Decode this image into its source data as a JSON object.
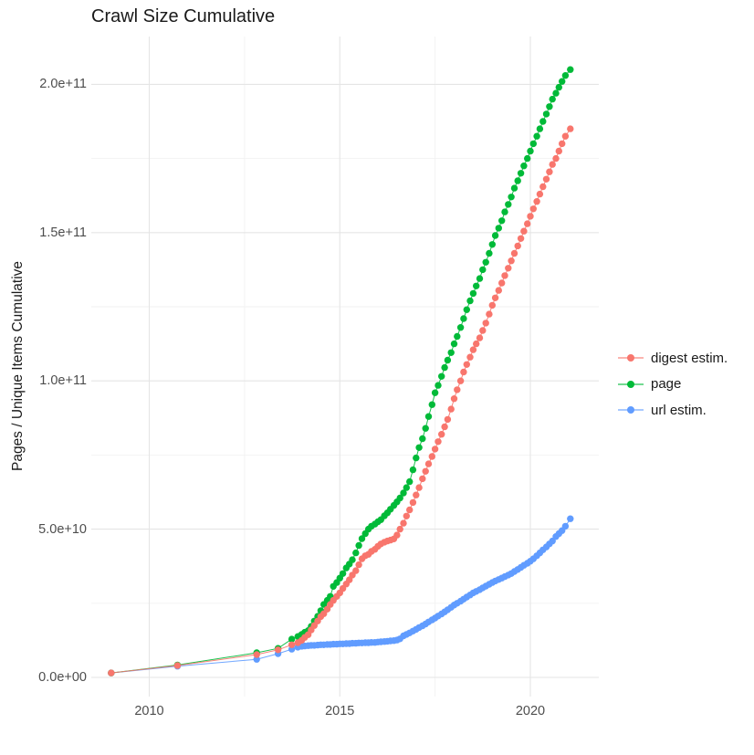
{
  "chart_data": {
    "type": "scatter",
    "title": "Crawl Size Cumulative",
    "xlabel": "",
    "ylabel": "Pages / Unique Items Cumulative",
    "legend_position": "right-center",
    "background_color": "#FFFFFF",
    "grid": {
      "major_color": "#E5E5E5",
      "minor_color": "#F2F2F2",
      "show_minor": true
    },
    "value_unit": "1e10 (values below are in units of 10 billion)",
    "x_axis": {
      "range": [
        2008.5,
        2021.8
      ],
      "ticks": [
        {
          "label": "2010",
          "value": 2010
        },
        {
          "label": "2015",
          "value": 2015
        },
        {
          "label": "2020",
          "value": 2020
        }
      ],
      "minor_ticks": [
        2012.5,
        2017.5
      ]
    },
    "y_axis": {
      "range_units_1e10": [
        -0.65,
        21.6
      ],
      "ticks": [
        {
          "label": "0.0e+00",
          "value": 0
        },
        {
          "label": "5.0e+10",
          "value": 5
        },
        {
          "label": "1.0e+11",
          "value": 10
        },
        {
          "label": "1.5e+11",
          "value": 15
        },
        {
          "label": "2.0e+11",
          "value": 20
        }
      ],
      "minor_ticks": [
        2.5,
        7.5,
        12.5,
        17.5
      ]
    },
    "series": [
      {
        "name": "digest estim.",
        "color": "#F8766D",
        "points": [
          [
            2009.0,
            0.15
          ],
          [
            2010.74,
            0.4
          ],
          [
            2012.82,
            0.77
          ],
          [
            2013.38,
            0.93
          ],
          [
            2013.74,
            1.1
          ],
          [
            2013.9,
            1.17
          ],
          [
            2014.0,
            1.25
          ],
          [
            2014.08,
            1.35
          ],
          [
            2014.17,
            1.44
          ],
          [
            2014.25,
            1.6
          ],
          [
            2014.33,
            1.75
          ],
          [
            2014.42,
            1.9
          ],
          [
            2014.5,
            2.05
          ],
          [
            2014.58,
            2.15
          ],
          [
            2014.67,
            2.3
          ],
          [
            2014.75,
            2.46
          ],
          [
            2014.83,
            2.6
          ],
          [
            2014.92,
            2.73
          ],
          [
            2015.0,
            2.85
          ],
          [
            2015.08,
            3.0
          ],
          [
            2015.17,
            3.15
          ],
          [
            2015.25,
            3.29
          ],
          [
            2015.33,
            3.45
          ],
          [
            2015.42,
            3.6
          ],
          [
            2015.5,
            3.8
          ],
          [
            2015.58,
            4.0
          ],
          [
            2015.67,
            4.1
          ],
          [
            2015.75,
            4.15
          ],
          [
            2015.83,
            4.25
          ],
          [
            2015.92,
            4.32
          ],
          [
            2016.0,
            4.42
          ],
          [
            2016.08,
            4.5
          ],
          [
            2016.17,
            4.56
          ],
          [
            2016.25,
            4.6
          ],
          [
            2016.33,
            4.63
          ],
          [
            2016.42,
            4.67
          ],
          [
            2016.5,
            4.8
          ],
          [
            2016.58,
            5.0
          ],
          [
            2016.67,
            5.2
          ],
          [
            2016.75,
            5.44
          ],
          [
            2016.83,
            5.65
          ],
          [
            2016.92,
            5.9
          ],
          [
            2017.0,
            6.15
          ],
          [
            2017.08,
            6.4
          ],
          [
            2017.17,
            6.7
          ],
          [
            2017.25,
            6.95
          ],
          [
            2017.33,
            7.2
          ],
          [
            2017.42,
            7.45
          ],
          [
            2017.5,
            7.7
          ],
          [
            2017.58,
            7.95
          ],
          [
            2017.67,
            8.2
          ],
          [
            2017.75,
            8.45
          ],
          [
            2017.83,
            8.7
          ],
          [
            2017.92,
            9.05
          ],
          [
            2018.0,
            9.4
          ],
          [
            2018.08,
            9.7
          ],
          [
            2018.17,
            10.0
          ],
          [
            2018.25,
            10.3
          ],
          [
            2018.33,
            10.55
          ],
          [
            2018.42,
            10.8
          ],
          [
            2018.5,
            11.05
          ],
          [
            2018.58,
            11.25
          ],
          [
            2018.67,
            11.45
          ],
          [
            2018.75,
            11.7
          ],
          [
            2018.83,
            11.95
          ],
          [
            2018.92,
            12.25
          ],
          [
            2019.0,
            12.55
          ],
          [
            2019.08,
            12.8
          ],
          [
            2019.17,
            13.05
          ],
          [
            2019.25,
            13.3
          ],
          [
            2019.33,
            13.55
          ],
          [
            2019.42,
            13.8
          ],
          [
            2019.5,
            14.05
          ],
          [
            2019.58,
            14.3
          ],
          [
            2019.67,
            14.55
          ],
          [
            2019.75,
            14.8
          ],
          [
            2019.83,
            15.05
          ],
          [
            2019.92,
            15.3
          ],
          [
            2020.0,
            15.55
          ],
          [
            2020.08,
            15.8
          ],
          [
            2020.17,
            16.05
          ],
          [
            2020.25,
            16.3
          ],
          [
            2020.33,
            16.55
          ],
          [
            2020.42,
            16.8
          ],
          [
            2020.5,
            17.05
          ],
          [
            2020.58,
            17.3
          ],
          [
            2020.67,
            17.5
          ],
          [
            2020.75,
            17.75
          ],
          [
            2020.83,
            18.0
          ],
          [
            2020.92,
            18.25
          ],
          [
            2021.05,
            18.5
          ]
        ]
      },
      {
        "name": "page",
        "color": "#00BA38",
        "points": [
          [
            2009.0,
            0.15
          ],
          [
            2010.74,
            0.42
          ],
          [
            2012.82,
            0.83
          ],
          [
            2013.38,
            0.98
          ],
          [
            2013.74,
            1.29
          ],
          [
            2013.9,
            1.38
          ],
          [
            2014.0,
            1.45
          ],
          [
            2014.08,
            1.52
          ],
          [
            2014.17,
            1.58
          ],
          [
            2014.25,
            1.72
          ],
          [
            2014.33,
            1.9
          ],
          [
            2014.42,
            2.06
          ],
          [
            2014.5,
            2.25
          ],
          [
            2014.58,
            2.46
          ],
          [
            2014.67,
            2.6
          ],
          [
            2014.75,
            2.73
          ],
          [
            2014.83,
            3.07
          ],
          [
            2014.92,
            3.2
          ],
          [
            2015.0,
            3.35
          ],
          [
            2015.08,
            3.5
          ],
          [
            2015.17,
            3.69
          ],
          [
            2015.25,
            3.82
          ],
          [
            2015.33,
            3.97
          ],
          [
            2015.42,
            4.2
          ],
          [
            2015.5,
            4.45
          ],
          [
            2015.58,
            4.68
          ],
          [
            2015.67,
            4.85
          ],
          [
            2015.75,
            5.0
          ],
          [
            2015.83,
            5.1
          ],
          [
            2015.92,
            5.17
          ],
          [
            2016.0,
            5.25
          ],
          [
            2016.08,
            5.32
          ],
          [
            2016.17,
            5.45
          ],
          [
            2016.25,
            5.55
          ],
          [
            2016.33,
            5.67
          ],
          [
            2016.42,
            5.8
          ],
          [
            2016.5,
            5.92
          ],
          [
            2016.58,
            6.05
          ],
          [
            2016.67,
            6.22
          ],
          [
            2016.75,
            6.4
          ],
          [
            2016.83,
            6.6
          ],
          [
            2016.92,
            7.0
          ],
          [
            2017.0,
            7.4
          ],
          [
            2017.08,
            7.75
          ],
          [
            2017.17,
            8.05
          ],
          [
            2017.25,
            8.4
          ],
          [
            2017.33,
            8.8
          ],
          [
            2017.42,
            9.2
          ],
          [
            2017.5,
            9.6
          ],
          [
            2017.58,
            9.85
          ],
          [
            2017.67,
            10.15
          ],
          [
            2017.75,
            10.45
          ],
          [
            2017.83,
            10.7
          ],
          [
            2017.92,
            10.95
          ],
          [
            2018.0,
            11.25
          ],
          [
            2018.08,
            11.5
          ],
          [
            2018.17,
            11.8
          ],
          [
            2018.25,
            12.1
          ],
          [
            2018.33,
            12.4
          ],
          [
            2018.42,
            12.7
          ],
          [
            2018.5,
            12.95
          ],
          [
            2018.58,
            13.2
          ],
          [
            2018.67,
            13.45
          ],
          [
            2018.75,
            13.75
          ],
          [
            2018.83,
            14.0
          ],
          [
            2018.92,
            14.3
          ],
          [
            2019.0,
            14.6
          ],
          [
            2019.08,
            14.9
          ],
          [
            2019.17,
            15.15
          ],
          [
            2019.25,
            15.4
          ],
          [
            2019.33,
            15.7
          ],
          [
            2019.42,
            15.95
          ],
          [
            2019.5,
            16.2
          ],
          [
            2019.58,
            16.5
          ],
          [
            2019.67,
            16.75
          ],
          [
            2019.75,
            17.0
          ],
          [
            2019.83,
            17.25
          ],
          [
            2019.92,
            17.5
          ],
          [
            2020.0,
            17.75
          ],
          [
            2020.08,
            18.0
          ],
          [
            2020.17,
            18.25
          ],
          [
            2020.25,
            18.5
          ],
          [
            2020.33,
            18.75
          ],
          [
            2020.42,
            19.0
          ],
          [
            2020.5,
            19.25
          ],
          [
            2020.58,
            19.5
          ],
          [
            2020.67,
            19.7
          ],
          [
            2020.75,
            19.9
          ],
          [
            2020.83,
            20.1
          ],
          [
            2020.92,
            20.3
          ],
          [
            2021.05,
            20.5
          ]
        ]
      },
      {
        "name": "url estim.",
        "color": "#619CFF",
        "points": [
          [
            2009.0,
            0.15
          ],
          [
            2010.74,
            0.38
          ],
          [
            2012.82,
            0.61
          ],
          [
            2013.38,
            0.8
          ],
          [
            2013.74,
            0.95
          ],
          [
            2013.9,
            1.02
          ],
          [
            2014.0,
            1.05
          ],
          [
            2014.08,
            1.06
          ],
          [
            2014.17,
            1.07
          ],
          [
            2014.25,
            1.08
          ],
          [
            2014.33,
            1.08
          ],
          [
            2014.42,
            1.09
          ],
          [
            2014.5,
            1.1
          ],
          [
            2014.58,
            1.1
          ],
          [
            2014.67,
            1.11
          ],
          [
            2014.75,
            1.11
          ],
          [
            2014.83,
            1.12
          ],
          [
            2014.92,
            1.12
          ],
          [
            2015.0,
            1.13
          ],
          [
            2015.08,
            1.13
          ],
          [
            2015.17,
            1.14
          ],
          [
            2015.25,
            1.14
          ],
          [
            2015.33,
            1.15
          ],
          [
            2015.42,
            1.15
          ],
          [
            2015.5,
            1.16
          ],
          [
            2015.58,
            1.16
          ],
          [
            2015.67,
            1.17
          ],
          [
            2015.75,
            1.17
          ],
          [
            2015.83,
            1.18
          ],
          [
            2015.92,
            1.18
          ],
          [
            2016.0,
            1.19
          ],
          [
            2016.08,
            1.2
          ],
          [
            2016.17,
            1.21
          ],
          [
            2016.25,
            1.22
          ],
          [
            2016.33,
            1.23
          ],
          [
            2016.42,
            1.24
          ],
          [
            2016.5,
            1.26
          ],
          [
            2016.58,
            1.3
          ],
          [
            2016.67,
            1.4
          ],
          [
            2016.75,
            1.45
          ],
          [
            2016.83,
            1.5
          ],
          [
            2016.92,
            1.56
          ],
          [
            2017.0,
            1.62
          ],
          [
            2017.08,
            1.68
          ],
          [
            2017.17,
            1.74
          ],
          [
            2017.25,
            1.8
          ],
          [
            2017.33,
            1.87
          ],
          [
            2017.42,
            1.94
          ],
          [
            2017.5,
            2.0
          ],
          [
            2017.58,
            2.07
          ],
          [
            2017.67,
            2.14
          ],
          [
            2017.75,
            2.21
          ],
          [
            2017.83,
            2.28
          ],
          [
            2017.92,
            2.36
          ],
          [
            2018.0,
            2.44
          ],
          [
            2018.08,
            2.5
          ],
          [
            2018.17,
            2.57
          ],
          [
            2018.25,
            2.64
          ],
          [
            2018.33,
            2.71
          ],
          [
            2018.42,
            2.78
          ],
          [
            2018.5,
            2.85
          ],
          [
            2018.58,
            2.9
          ],
          [
            2018.67,
            2.96
          ],
          [
            2018.75,
            3.02
          ],
          [
            2018.83,
            3.08
          ],
          [
            2018.92,
            3.14
          ],
          [
            2019.0,
            3.2
          ],
          [
            2019.08,
            3.25
          ],
          [
            2019.17,
            3.3
          ],
          [
            2019.25,
            3.35
          ],
          [
            2019.33,
            3.4
          ],
          [
            2019.42,
            3.45
          ],
          [
            2019.5,
            3.5
          ],
          [
            2019.58,
            3.57
          ],
          [
            2019.67,
            3.64
          ],
          [
            2019.75,
            3.71
          ],
          [
            2019.83,
            3.78
          ],
          [
            2019.92,
            3.85
          ],
          [
            2020.0,
            3.92
          ],
          [
            2020.08,
            4.0
          ],
          [
            2020.17,
            4.1
          ],
          [
            2020.25,
            4.2
          ],
          [
            2020.33,
            4.3
          ],
          [
            2020.42,
            4.4
          ],
          [
            2020.5,
            4.5
          ],
          [
            2020.58,
            4.6
          ],
          [
            2020.67,
            4.75
          ],
          [
            2020.75,
            4.85
          ],
          [
            2020.83,
            4.95
          ],
          [
            2020.92,
            5.1
          ],
          [
            2021.05,
            5.35
          ]
        ]
      }
    ],
    "draw_order": [
      "url estim.",
      "page",
      "digest estim."
    ]
  }
}
